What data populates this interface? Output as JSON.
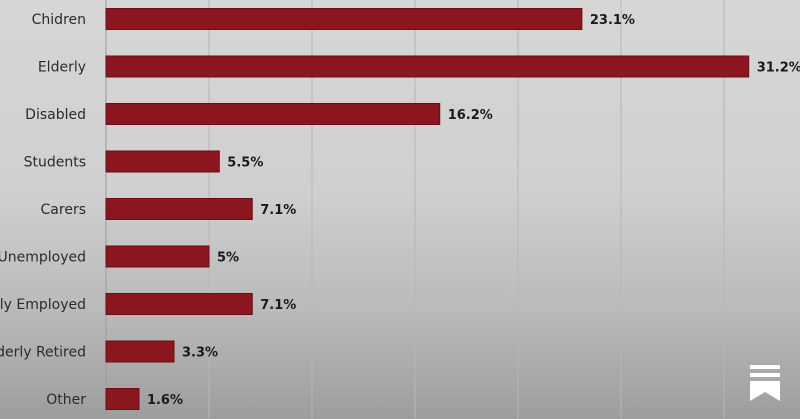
{
  "chart_data": {
    "type": "bar",
    "orientation": "horizontal",
    "categories": [
      "Chidren",
      "Elderly",
      "Disabled",
      "Students",
      "Carers",
      "Unemployed",
      "lly Employed",
      "derly Retired",
      "Other"
    ],
    "values": [
      23.1,
      31.2,
      16.2,
      5.5,
      7.1,
      5,
      7.1,
      3.3,
      1.6
    ],
    "value_labels": [
      "23.1%",
      "31.2%",
      "16.2%",
      "5.5%",
      "7.1%",
      "5%",
      "7.1%",
      "3.3%",
      "1.6%"
    ],
    "xlim": [
      0,
      35
    ],
    "grid": true,
    "bar_color": "#8c1620"
  },
  "brand": {
    "icon": "bookmark-logo-icon",
    "color": "#ffffff"
  }
}
